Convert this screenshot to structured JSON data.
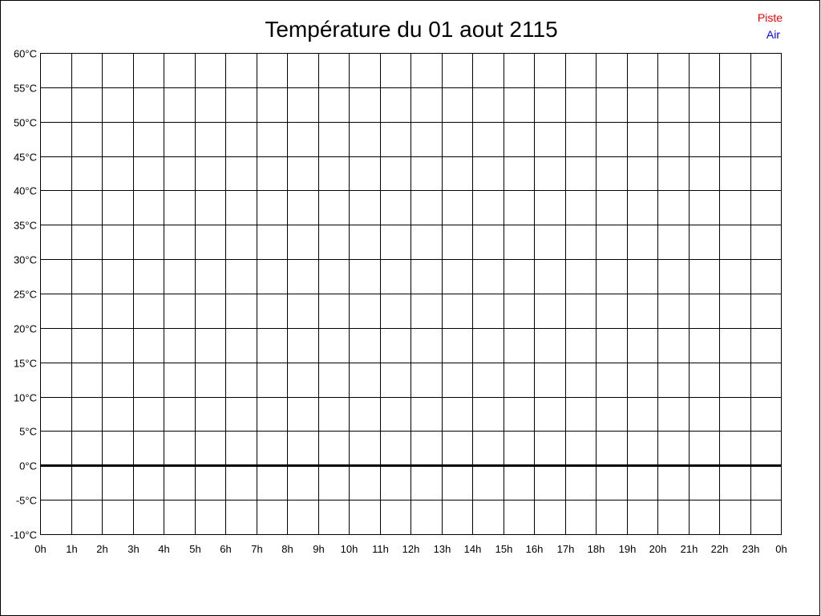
{
  "chart_data": {
    "type": "line",
    "title": "Température du 01 aout 2115",
    "xlabel": "",
    "ylabel": "",
    "x_ticks": [
      "0h",
      "1h",
      "2h",
      "3h",
      "4h",
      "5h",
      "6h",
      "7h",
      "8h",
      "9h",
      "10h",
      "11h",
      "12h",
      "13h",
      "14h",
      "15h",
      "16h",
      "17h",
      "18h",
      "19h",
      "20h",
      "21h",
      "22h",
      "23h",
      "0h"
    ],
    "y_ticks": [
      "60°C",
      "55°C",
      "50°C",
      "45°C",
      "40°C",
      "35°C",
      "30°C",
      "25°C",
      "20°C",
      "15°C",
      "10°C",
      "5°C",
      "0°C",
      "-5°C",
      "-10°C"
    ],
    "ylim": [
      -10,
      60
    ],
    "xlim": [
      0,
      24
    ],
    "grid": true,
    "legend_position": "top-right",
    "series": [
      {
        "name": "Piste",
        "color": "#ff0000",
        "values": []
      },
      {
        "name": "Air",
        "color": "#0000ff",
        "values": []
      }
    ],
    "zero_line": true
  }
}
